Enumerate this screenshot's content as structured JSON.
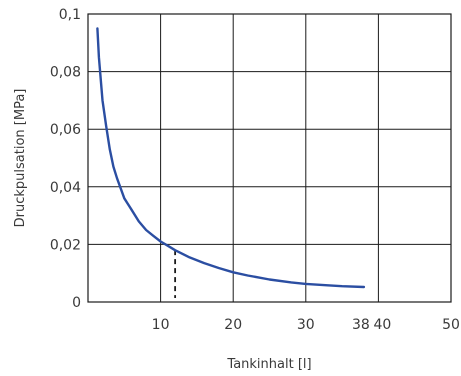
{
  "chart_data": {
    "type": "line",
    "title": "",
    "xlabel": "Tankinhalt [l]",
    "ylabel": "Druckpulsation [MPa]",
    "xlim": [
      0,
      50
    ],
    "ylim": [
      0,
      0.1
    ],
    "x_ticks": [
      {
        "value": 10,
        "label": "10"
      },
      {
        "value": 20,
        "label": "20"
      },
      {
        "value": 30,
        "label": "30"
      },
      {
        "value": 38,
        "label": "38"
      },
      {
        "value": 40,
        "label": "40"
      },
      {
        "value": 50,
        "label": "50"
      }
    ],
    "y_ticks": [
      {
        "value": 0,
        "label": "0"
      },
      {
        "value": 0.02,
        "label": "0,02"
      },
      {
        "value": 0.04,
        "label": "0,04"
      },
      {
        "value": 0.06,
        "label": "0,06"
      },
      {
        "value": 0.08,
        "label": "0,08"
      },
      {
        "value": 0.1,
        "label": "0,1"
      }
    ],
    "grid_x": [
      10,
      20,
      30,
      40
    ],
    "grid_y": [
      0.02,
      0.04,
      0.06,
      0.08
    ],
    "grid": true,
    "series": [
      {
        "color": "#2b4ea2",
        "x": [
          1.3,
          1.5,
          2,
          2.5,
          3,
          3.5,
          4,
          5,
          6,
          7,
          8,
          9,
          10,
          11,
          12,
          14,
          16,
          18,
          20,
          22,
          25,
          28,
          30,
          33,
          35,
          38
        ],
        "y": [
          0.095,
          0.085,
          0.07,
          0.061,
          0.053,
          0.047,
          0.043,
          0.036,
          0.032,
          0.028,
          0.025,
          0.023,
          0.021,
          0.0195,
          0.018,
          0.0155,
          0.0135,
          0.0118,
          0.0103,
          0.0092,
          0.0078,
          0.0068,
          0.0063,
          0.0058,
          0.0055,
          0.0052
        ]
      }
    ],
    "marker_line": {
      "x": 12,
      "y": 0.018,
      "style": "dashed",
      "color": "#1a1a1a"
    }
  }
}
